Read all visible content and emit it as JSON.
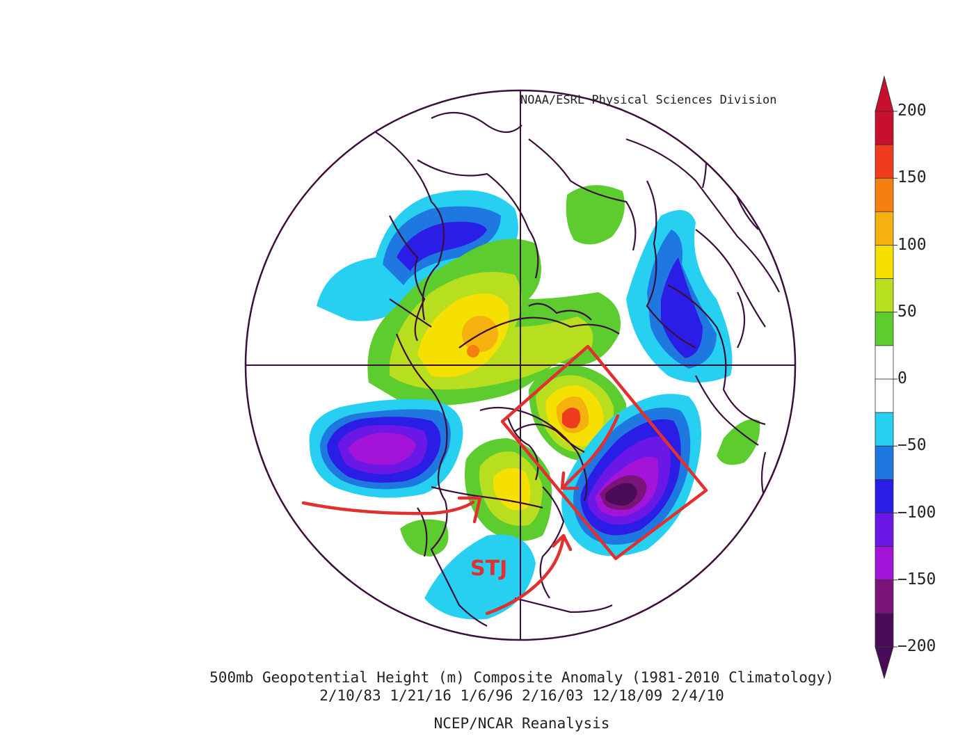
{
  "header": {
    "credit": "NOAA/ESRL Physical Sciences Division"
  },
  "caption": {
    "line1": "500mb Geopotential Height (m) Composite Anomaly (1981-2010 Climatology)",
    "line2": "2/10/83 1/21/16 1/6/96 2/16/03 12/18/09 2/4/10",
    "line3": "NCEP/NCAR Reanalysis"
  },
  "annotations": {
    "jet_label": "STJ",
    "annotation_color": "#e03030"
  },
  "colorbar": {
    "ticks": [
      "200",
      "150",
      "100",
      "50",
      "0",
      "−50",
      "−100",
      "−150",
      "−200"
    ],
    "bins": [
      {
        "color": "#c8102e"
      },
      {
        "color": "#f03c1e"
      },
      {
        "color": "#f57f10"
      },
      {
        "color": "#f5b10e"
      },
      {
        "color": "#f5e000"
      },
      {
        "color": "#b7df1f"
      },
      {
        "color": "#5ccc2e"
      },
      {
        "color": "#ffffff"
      },
      {
        "color": "#ffffff"
      },
      {
        "color": "#27d0f0"
      },
      {
        "color": "#1e78e0"
      },
      {
        "color": "#2a1de6"
      },
      {
        "color": "#6b18e6"
      },
      {
        "color": "#a314d8"
      },
      {
        "color": "#7a1478"
      },
      {
        "color": "#4a0c58"
      }
    ]
  }
}
